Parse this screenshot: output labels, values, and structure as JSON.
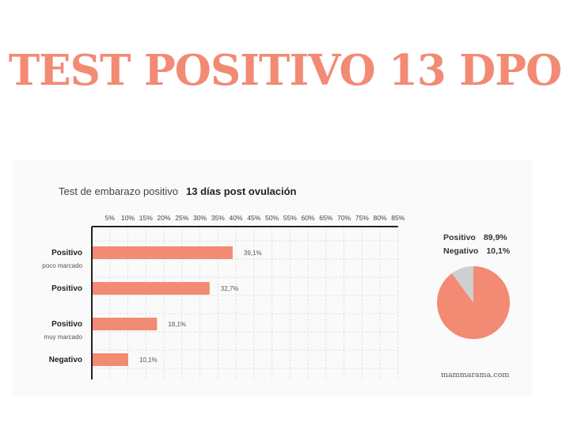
{
  "headline": "TEST POSITIVO 13 DPO",
  "subtitle": {
    "label": "Test de embarazo positivo",
    "emphasis": "13 días post ovulación"
  },
  "colors": {
    "accent": "#f28a74",
    "pie_other": "#cfcfcf",
    "grid": "#dddddd",
    "axis": "#222222"
  },
  "chart_data": [
    {
      "type": "bar",
      "orientation": "horizontal",
      "categories": [
        {
          "label": "Positivo",
          "sublabel": "poco marcado"
        },
        {
          "label": "Positivo",
          "sublabel": ""
        },
        {
          "label": "Positivo",
          "sublabel": "muy marcado"
        },
        {
          "label": "Negativo",
          "sublabel": ""
        }
      ],
      "values": [
        39.1,
        32.7,
        18.1,
        10.1
      ],
      "value_labels": [
        "39,1%",
        "32,7%",
        "18,1%",
        "10,1%"
      ],
      "xlim": [
        0,
        85
      ],
      "xticks": [
        "5%",
        "10%",
        "15%",
        "20%",
        "25%",
        "30%",
        "35%",
        "40%",
        "45%",
        "50%",
        "55%",
        "60%",
        "65%",
        "70%",
        "75%",
        "80%",
        "85%"
      ],
      "xaxis_position": "top",
      "grid": true
    },
    {
      "type": "pie",
      "slices": [
        {
          "name": "Positivo",
          "value": 89.9,
          "label": "89,9%"
        },
        {
          "name": "Negativo",
          "value": 10.1,
          "label": "10,1%"
        }
      ]
    }
  ],
  "watermark": "mammarama.com"
}
